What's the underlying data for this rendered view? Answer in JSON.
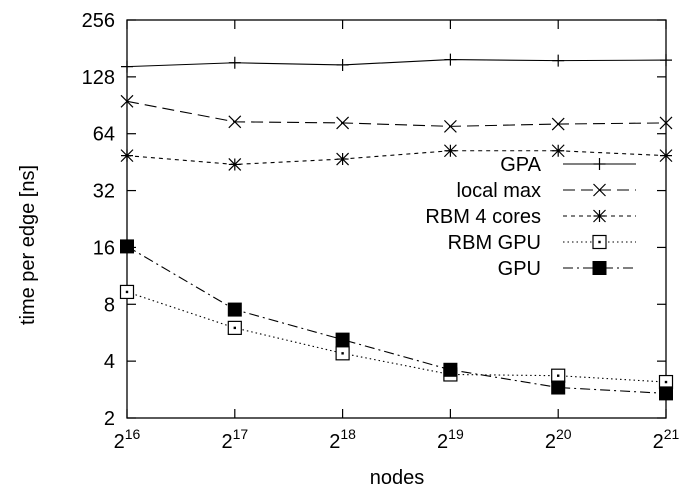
{
  "chart_data": {
    "type": "line",
    "xlabel": "nodes",
    "ylabel": "time per edge [ns]",
    "xscale": "log2",
    "yscale": "log2",
    "x": [
      "2^16",
      "2^17",
      "2^18",
      "2^19",
      "2^20",
      "2^21"
    ],
    "x_ticks": [
      {
        "base": "2",
        "exp": "16"
      },
      {
        "base": "2",
        "exp": "17"
      },
      {
        "base": "2",
        "exp": "18"
      },
      {
        "base": "2",
        "exp": "19"
      },
      {
        "base": "2",
        "exp": "20"
      },
      {
        "base": "2",
        "exp": "21"
      }
    ],
    "y_ticks": [
      "2",
      "4",
      "8",
      "16",
      "32",
      "64",
      "128",
      "256"
    ],
    "ylim": [
      2,
      256
    ],
    "grid": false,
    "legend_position": "inside-right",
    "series": [
      {
        "name": "GPA",
        "marker": "plus",
        "dash": "solid",
        "values": [
          145,
          152,
          148,
          158,
          156,
          157
        ]
      },
      {
        "name": "local max",
        "marker": "x",
        "dash": "long-dash",
        "values": [
          95,
          74,
          73,
          70,
          72,
          73
        ]
      },
      {
        "name": "RBM 4 cores",
        "marker": "star",
        "dash": "short-dash",
        "values": [
          49,
          44,
          47,
          52,
          52,
          49
        ]
      },
      {
        "name": "RBM GPU",
        "marker": "open-square",
        "dash": "dotted",
        "values": [
          9.3,
          6.0,
          4.4,
          3.4,
          3.35,
          3.1
        ]
      },
      {
        "name": "GPU",
        "marker": "filled-square",
        "dash": "dash-dot",
        "values": [
          16.2,
          7.5,
          5.2,
          3.6,
          2.9,
          2.7
        ]
      }
    ]
  }
}
